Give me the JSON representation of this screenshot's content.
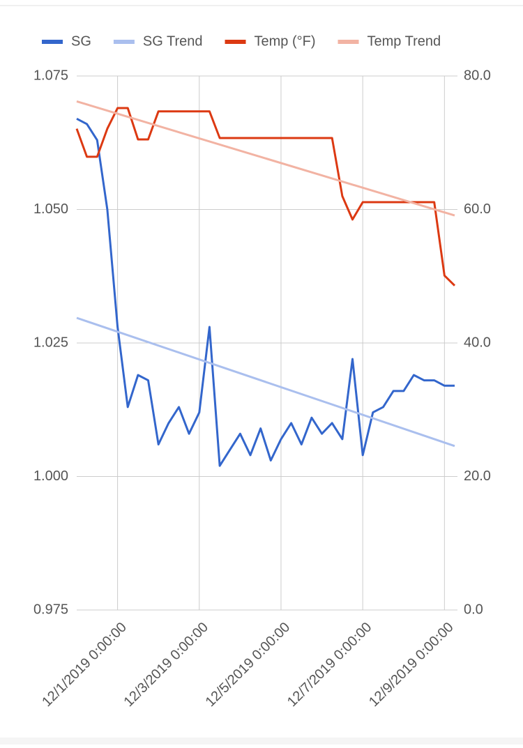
{
  "chart_data": {
    "type": "line",
    "x": [
      "2019-11-30 00:00",
      "2019-11-30 06:00",
      "2019-11-30 12:00",
      "2019-11-30 18:00",
      "2019-12-01 00:00",
      "2019-12-01 06:00",
      "2019-12-01 12:00",
      "2019-12-01 18:00",
      "2019-12-02 00:00",
      "2019-12-02 06:00",
      "2019-12-02 12:00",
      "2019-12-02 18:00",
      "2019-12-03 00:00",
      "2019-12-03 06:00",
      "2019-12-03 12:00",
      "2019-12-03 18:00",
      "2019-12-04 00:00",
      "2019-12-04 06:00",
      "2019-12-04 12:00",
      "2019-12-04 18:00",
      "2019-12-05 00:00",
      "2019-12-05 06:00",
      "2019-12-05 12:00",
      "2019-12-05 18:00",
      "2019-12-06 00:00",
      "2019-12-06 06:00",
      "2019-12-06 12:00",
      "2019-12-06 18:00",
      "2019-12-07 00:00",
      "2019-12-07 06:00",
      "2019-12-07 12:00",
      "2019-12-07 18:00",
      "2019-12-08 00:00",
      "2019-12-08 06:00",
      "2019-12-08 12:00",
      "2019-12-08 18:00",
      "2019-12-09 00:00",
      "2019-12-09 06:00"
    ],
    "series": [
      {
        "name": "SG",
        "color": "#3366cc",
        "width": 3,
        "values": [
          1.067,
          1.066,
          1.063,
          1.05,
          1.028,
          1.013,
          1.019,
          1.018,
          1.006,
          1.01,
          1.013,
          1.008,
          1.012,
          1.028,
          1.002,
          1.005,
          1.008,
          1.004,
          1.009,
          1.003,
          1.007,
          1.01,
          1.006,
          1.011,
          1.008,
          1.01,
          1.007,
          1.022,
          1.004,
          1.012,
          1.013,
          1.016,
          1.016,
          1.019,
          1.018,
          1.018,
          1.017,
          1.017
        ]
      },
      {
        "name": "SG Trend",
        "color": "#aabfee",
        "width": 3,
        "x": [
          "2019-11-30 00:00",
          "2019-12-09 06:00"
        ],
        "values": [
          1.0297,
          1.0057
        ]
      },
      {
        "name": "Temp (°F)",
        "color": "#dc3912",
        "width": 3,
        "axis": "y2",
        "values": [
          72.1,
          67.9,
          67.9,
          72.1,
          75.2,
          75.2,
          70.5,
          70.5,
          74.7,
          74.7,
          74.7,
          74.7,
          74.7,
          74.7,
          70.7,
          70.7,
          70.7,
          70.7,
          70.7,
          70.7,
          70.7,
          70.7,
          70.7,
          70.7,
          70.7,
          70.7,
          62.0,
          58.5,
          61.1,
          61.1,
          61.1,
          61.1,
          61.1,
          61.1,
          61.1,
          61.1,
          50.1,
          48.6
        ]
      },
      {
        "name": "Temp Trend",
        "color": "#f2b3a3",
        "width": 3,
        "axis": "y2",
        "x": [
          "2019-11-30 00:00",
          "2019-12-09 06:00"
        ],
        "values": [
          76.2,
          59.1
        ]
      }
    ],
    "xlim": [
      "2019-11-30 00:00",
      "2019-12-09 06:00"
    ],
    "xticks": [
      {
        "value": "2019-12-01 00:00",
        "label": "12/1/2019 0:00:00"
      },
      {
        "value": "2019-12-03 00:00",
        "label": "12/3/2019 0:00:00"
      },
      {
        "value": "2019-12-05 00:00",
        "label": "12/5/2019 0:00:00"
      },
      {
        "value": "2019-12-07 00:00",
        "label": "12/7/2019 0:00:00"
      },
      {
        "value": "2019-12-09 00:00",
        "label": "12/9/2019 0:00:00"
      }
    ],
    "ylim": [
      0.975,
      1.075
    ],
    "yticks": [
      0.975,
      {
        "value": 1.0,
        "label": "1.000"
      },
      1.025,
      {
        "value": 1.05,
        "label": "1.050"
      },
      1.075
    ],
    "y2lim": [
      0,
      80
    ],
    "y2ticks": [
      {
        "value": 0,
        "label": "0.0"
      },
      {
        "value": 20,
        "label": "20.0"
      },
      {
        "value": 40,
        "label": "40.0"
      },
      {
        "value": 60,
        "label": "60.0"
      },
      {
        "value": 80,
        "label": "80.0"
      }
    ],
    "grid": true,
    "legend": "top"
  }
}
